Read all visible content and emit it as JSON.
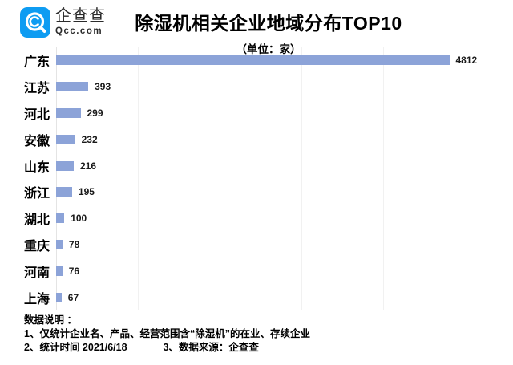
{
  "logo": {
    "name": "企查查",
    "domain": "Qcc.com",
    "brand_color": "#0E9CF2"
  },
  "header": {
    "title": "除湿机相关企业地域分布TOP10",
    "subtitle": "（单位：家）"
  },
  "chart_data": {
    "type": "bar",
    "orientation": "horizontal",
    "title": "除湿机相关企业地域分布TOP10",
    "unit_label": "（单位：家）",
    "categories": [
      "广东",
      "江苏",
      "河北",
      "安徽",
      "山东",
      "浙江",
      "湖北",
      "重庆",
      "河南",
      "上海"
    ],
    "values": [
      4812,
      393,
      299,
      232,
      216,
      195,
      100,
      78,
      76,
      67
    ],
    "bar_color": "#8CA3D8",
    "xlim": [
      0,
      5200
    ],
    "gridline_interval": 1000,
    "grid": true,
    "legend": false,
    "value_labels": true
  },
  "footer": {
    "heading": "数据说明 ：",
    "note1": "1、仅统计企业名、产品、经营范围含“除湿机”的在业、存续企业",
    "note2": "2、统计时间 2021/6/18",
    "note3": "3、数据来源：企查查"
  }
}
